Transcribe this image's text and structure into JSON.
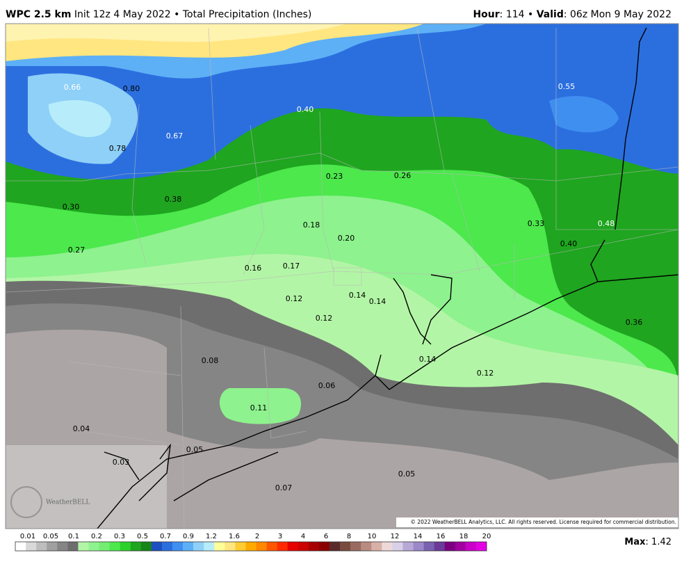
{
  "header": {
    "product": "WPC 2.5 km",
    "subtitle": "Init 12z 4 May 2022 • Total Precipitation (Inches)",
    "hour_label": "Hour",
    "hour_text": ": 114 •",
    "valid_label": "Valid",
    "valid_text": ": 06z Mon 9 May 2022"
  },
  "map": {
    "labels": [
      "0.66",
      "0.80",
      "0.40",
      "0.55",
      "0.67",
      "0.78",
      "0.23",
      "0.26",
      "0.30",
      "0.38",
      "0.18",
      "0.33",
      "0.48",
      "0.20",
      "0.40",
      "0.27",
      "0.16",
      "0.17",
      "0.14",
      "0.14",
      "0.12",
      "0.12",
      "0.36",
      "0.08",
      "0.14",
      "0.12",
      "0.06",
      "0.11",
      "0.04",
      "0.05",
      "0.03",
      "0.05",
      "0.07"
    ],
    "copyright": "© 2022 WeatherBELL Analytics, LLC. All rights reserved. License required for commercial distribution.",
    "logo": "WeatherBELL"
  },
  "legend": {
    "ticks": [
      "0.01",
      "0.05",
      "0.1",
      "0.2",
      "0.3",
      "0.5",
      "0.7",
      "0.9",
      "1.2",
      "1.6",
      "2",
      "3",
      "4",
      "6",
      "8",
      "10",
      "12",
      "14",
      "16",
      "18",
      "20"
    ],
    "colors": [
      "#ffffff",
      "#d9d9d9",
      "#bdbdbd",
      "#a0a0a0",
      "#858585",
      "#6e6e6e",
      "#b3f5a6",
      "#8ef28e",
      "#73ee73",
      "#4ce84c",
      "#2bd12b",
      "#1fa51f",
      "#17851a",
      "#1e4fc0",
      "#2b6fdf",
      "#3f8ff0",
      "#5db0f5",
      "#8fd0f8",
      "#b7ecfa",
      "#ffff99",
      "#ffe680",
      "#ffcc33",
      "#ffaa00",
      "#ff8800",
      "#ff5500",
      "#ff2a00",
      "#e60000",
      "#cc0000",
      "#a80000",
      "#8a0000",
      "#5a2a2a",
      "#7a4a40",
      "#9a6a60",
      "#b88c80",
      "#d8b0a8",
      "#eed8d8",
      "#d8d0e8",
      "#b8a8d8",
      "#9a88c8",
      "#7a60b0",
      "#6a3a98",
      "#7a0080",
      "#a000a0",
      "#c800c8",
      "#e400e4"
    ],
    "max_label": "Max",
    "max_text": ": 1.42"
  }
}
